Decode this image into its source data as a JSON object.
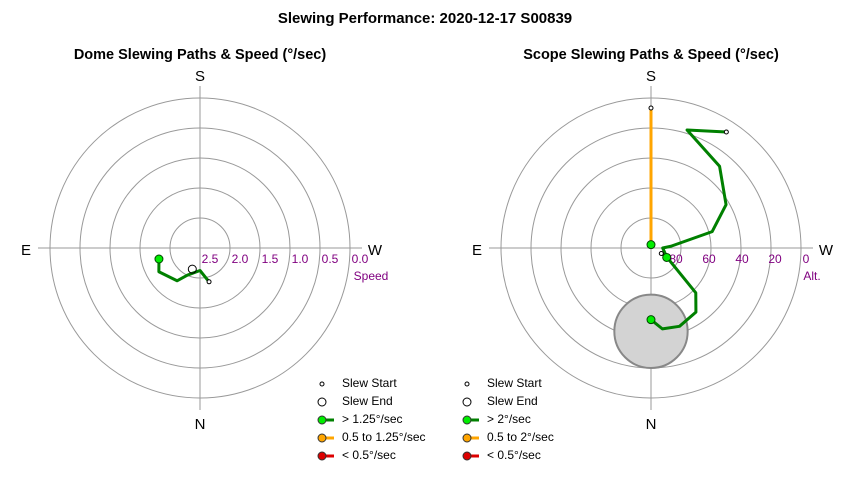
{
  "title": "Slewing Performance: 2020-12-17 S00839",
  "chart_data": [
    {
      "type": "polar-path",
      "title": "Dome Slewing Paths & Speed (°/sec)",
      "compass": [
        "S",
        "E",
        "W",
        "N"
      ],
      "radial_axis": {
        "label": "Speed",
        "ticks": [
          "2.5",
          "2.0",
          "1.5",
          "1.0",
          "0.5",
          "0.0"
        ],
        "values": [
          2.5,
          2.0,
          1.5,
          1.0,
          0.5,
          0.0
        ],
        "max": 3.0
      },
      "legend": [
        {
          "label": "Slew Start",
          "kind": "start-marker"
        },
        {
          "label": "Slew End",
          "kind": "end-marker"
        },
        {
          "label": "> 1.25°/sec",
          "color": "#00cc00"
        },
        {
          "label": "0.5 to 1.25°/sec",
          "color": "#ffa500"
        },
        {
          "label": "< 0.5°/sec",
          "color": "#dd0000"
        }
      ],
      "paths": [
        {
          "color": "#008000",
          "points": [
            [
              165,
              2.3
            ],
            [
              180,
              2.55
            ],
            [
              205,
              2.4
            ],
            [
              215,
              2.2
            ],
            [
              240,
              2.05
            ],
            [
              255,
              2.15
            ]
          ],
          "start": [
            165,
            2.3
          ],
          "end": [
            255,
            2.15
          ]
        }
      ],
      "markers": [
        {
          "kind": "end",
          "point": [
            200,
            2.55
          ]
        }
      ]
    },
    {
      "type": "polar-path",
      "title": "Scope Slewing Paths & Speed (°/sec)",
      "compass": [
        "S",
        "E",
        "W",
        "N"
      ],
      "radial_axis": {
        "label": "Alt.",
        "ticks": [
          "80",
          "60",
          "40",
          "20",
          "0"
        ],
        "values": [
          80,
          60,
          40,
          20,
          0
        ],
        "max": 90
      },
      "legend": [
        {
          "label": "Slew Start",
          "kind": "start-marker"
        },
        {
          "label": "Slew End",
          "kind": "end-marker"
        },
        {
          "label": "> 2°/sec",
          "color": "#00cc00"
        },
        {
          "label": "0.5 to 2°/sec",
          "color": "#ffa500"
        },
        {
          "label": "< 0.5°/sec",
          "color": "#dd0000"
        }
      ],
      "paths": [
        {
          "color": "#ffa500",
          "points": [
            [
              0,
              6
            ],
            [
              0,
              30
            ],
            [
              0,
              60
            ],
            [
              0,
              88
            ]
          ],
          "start": [
            0,
            6
          ],
          "end": [
            0,
            88
          ]
        },
        {
          "color": "#008000",
          "points": [
            [
              33,
              7
            ],
            [
              17,
              16
            ],
            [
              40,
              26
            ],
            [
              60,
              38
            ],
            [
              75,
              52
            ],
            [
              85,
              78
            ],
            [
              90,
              83
            ],
            [
              120,
              79
            ],
            [
              135,
              52
            ],
            [
              145,
              43
            ],
            [
              160,
              40
            ],
            [
              172,
              41
            ],
            [
              180,
              47
            ]
          ],
          "start": [
            33,
            7
          ],
          "end": [
            180,
            47
          ]
        },
        {
          "color": "#008000",
          "points": [
            [
              118,
              83
            ],
            [
              121,
              79
            ]
          ],
          "start": [
            118,
            83
          ],
          "end": [
            121,
            79
          ]
        }
      ],
      "exclusion_zone": {
        "center": [
          0,
          40
        ],
        "radius_deg": 22,
        "color": "#d3d3d3"
      }
    }
  ]
}
